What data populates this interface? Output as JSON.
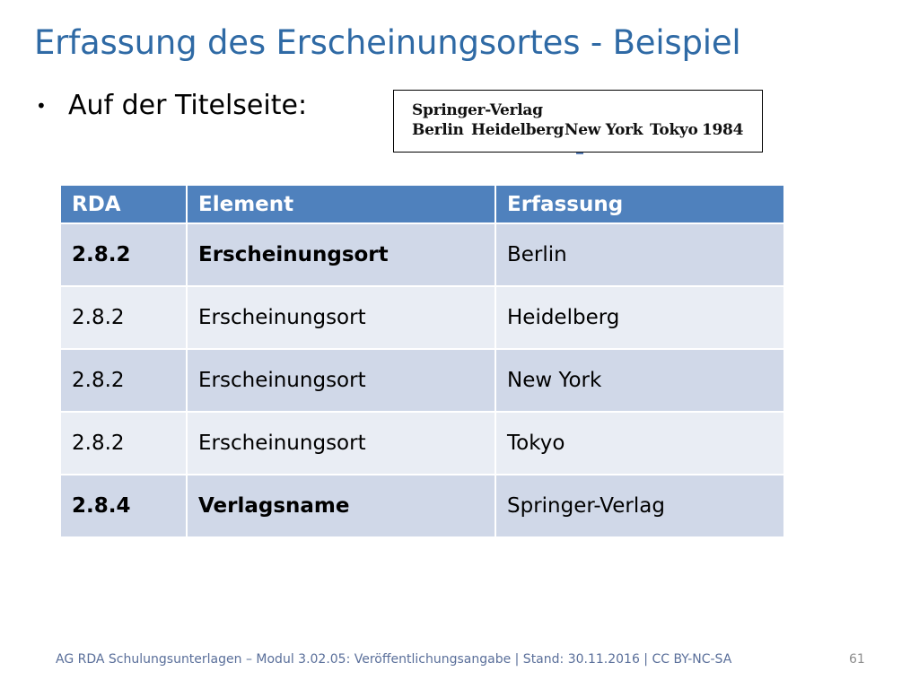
{
  "slide": {
    "title": "Erfassung des Erscheinungsortes - Beispiel",
    "bullet": "Auf der Titelseite:",
    "bullet_glyph": "•",
    "title_color": "#2f6aa5"
  },
  "titlepage": {
    "line1": "Springer-Verlag",
    "line2": [
      "Berlin",
      "Heidelberg",
      "New York",
      "Tokyo",
      "1984"
    ]
  },
  "table": {
    "headers": [
      "RDA",
      "Element",
      "Erfassung"
    ],
    "header_color": "#4f81bd",
    "rows": [
      {
        "rda": "2.8.2",
        "element": "Erscheinungsort",
        "erfassung": "Berlin",
        "bold": true
      },
      {
        "rda": "2.8.2",
        "element": "Erscheinungsort",
        "erfassung": "Heidelberg",
        "bold": false
      },
      {
        "rda": "2.8.2",
        "element": "Erscheinungsort",
        "erfassung": "New York",
        "bold": false
      },
      {
        "rda": "2.8.2",
        "element": "Erscheinungsort",
        "erfassung": "Tokyo",
        "bold": false
      },
      {
        "rda": "2.8.4",
        "element": "Verlagsname",
        "erfassung": "Springer-Verlag",
        "bold": true
      }
    ]
  },
  "footer": {
    "text": "AG RDA Schulungsunterlagen – Modul 3.02.05: Veröffentlichungsangabe | Stand: 30.11.2016 | CC BY-NC-SA",
    "page_number": "61"
  }
}
